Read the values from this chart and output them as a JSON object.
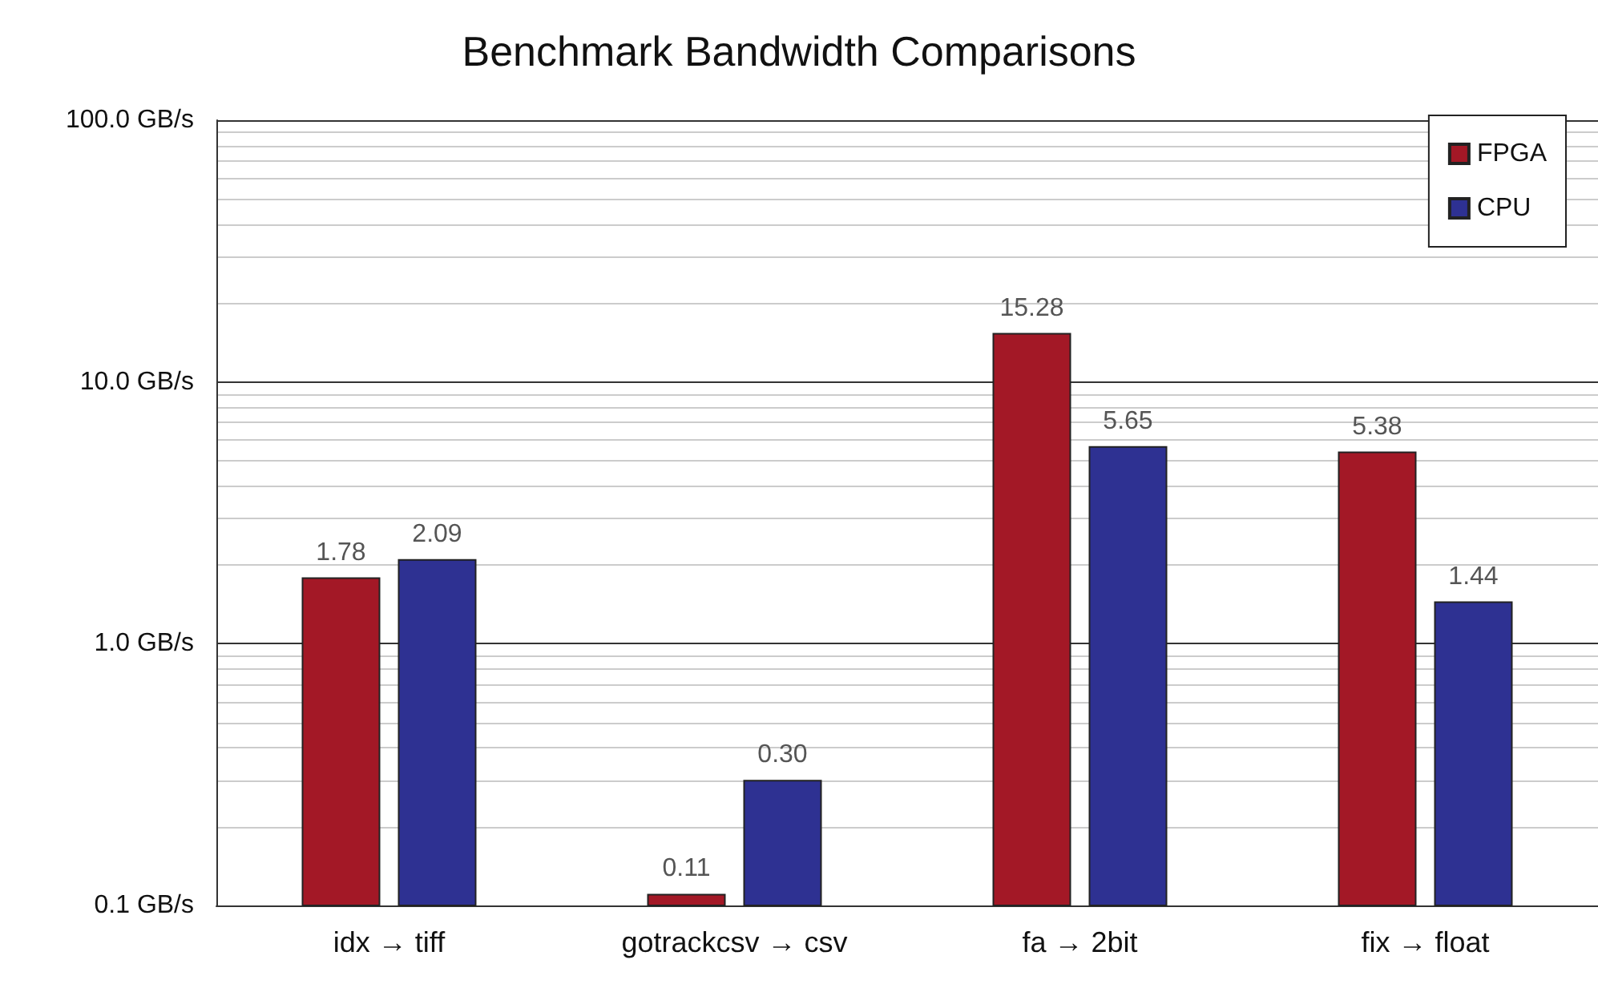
{
  "chart_data": {
    "type": "bar",
    "title": "Benchmark Bandwidth Comparisons",
    "categories": [
      "idx → tiff",
      "gotrackcsv → csv",
      "fa → 2bit",
      "fix → float"
    ],
    "series": [
      {
        "name": "FPGA",
        "color": "#a31826",
        "values": [
          1.78,
          0.11,
          15.28,
          5.38
        ],
        "value_labels": [
          "1.78",
          "0.11",
          "15.28",
          "5.38"
        ]
      },
      {
        "name": "CPU",
        "color": "#2e3192",
        "values": [
          2.09,
          0.3,
          5.65,
          1.44
        ],
        "value_labels": [
          "2.09",
          "0.30",
          "5.65",
          "1.44"
        ]
      }
    ],
    "log": "y",
    "ylim": [
      0.1,
      100
    ],
    "yticks": [
      {
        "value": 0.1,
        "label": "0.1 GB/s"
      },
      {
        "value": 1,
        "label": "1.0 GB/s"
      },
      {
        "value": 10,
        "label": "10.0 GB/s"
      },
      {
        "value": 100,
        "label": "100.0 GB/s"
      }
    ],
    "grid": true,
    "legend": "top right"
  }
}
